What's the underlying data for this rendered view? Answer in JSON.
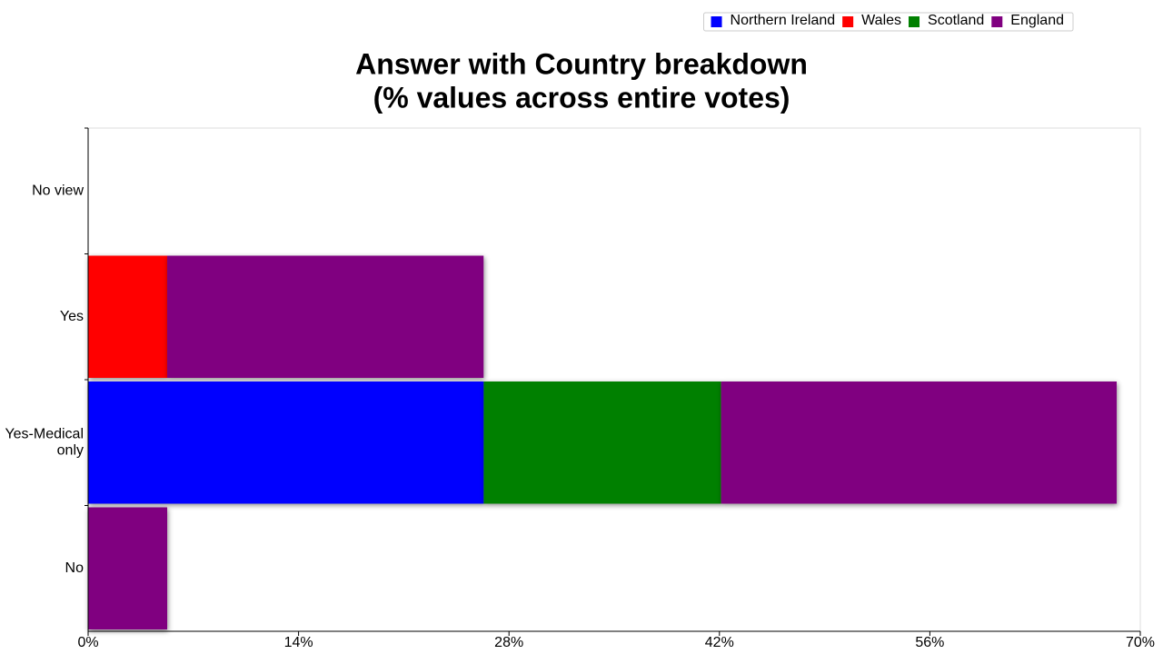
{
  "chart_data": {
    "type": "stacked-hbar",
    "title": "Answer with Country breakdown",
    "subtitle": "(% values across entire votes)",
    "categories": [
      "No view",
      "Yes",
      "Yes-Medical only",
      "No"
    ],
    "series": [
      {
        "name": "Northern Ireland",
        "color": "#0000ff",
        "values": [
          0,
          0,
          26.32,
          0
        ]
      },
      {
        "name": "Wales",
        "color": "#ff0000",
        "values": [
          0,
          5.26,
          0,
          0
        ]
      },
      {
        "name": "Scotland",
        "color": "#008000",
        "values": [
          0,
          0,
          15.79,
          0
        ]
      },
      {
        "name": "England",
        "color": "#800080",
        "values": [
          0,
          21.05,
          26.32,
          5.26
        ]
      }
    ],
    "xlim": [
      0,
      70
    ],
    "xticks": [
      {
        "value": 0,
        "label": "0%"
      },
      {
        "value": 14,
        "label": "14%"
      },
      {
        "value": 28,
        "label": "28%"
      },
      {
        "value": 42,
        "label": "42%"
      },
      {
        "value": 56,
        "label": "56%"
      },
      {
        "value": 70,
        "label": "70%"
      }
    ],
    "legend": "top-right"
  }
}
